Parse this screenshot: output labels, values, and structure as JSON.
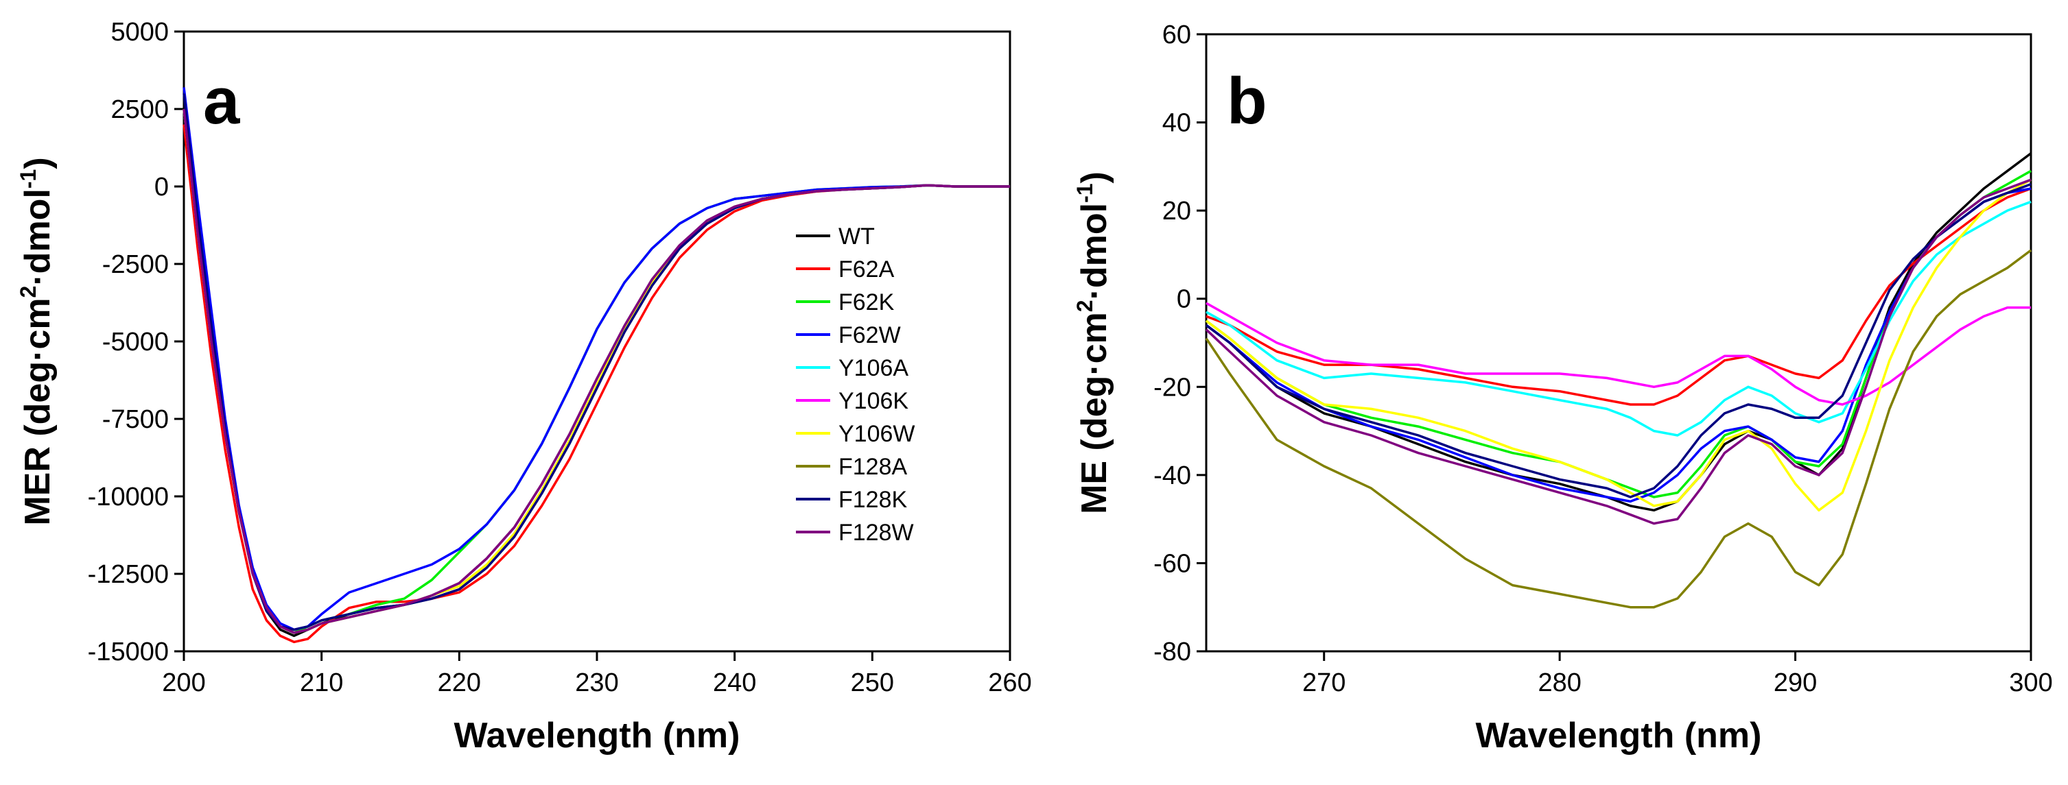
{
  "series_colors": {
    "WT": "#000000",
    "F62A": "#ff0000",
    "F62K": "#00ee00",
    "F62W": "#0000ff",
    "Y106A": "#00ffff",
    "Y106K": "#ff00ff",
    "Y106W": "#ffff00",
    "F128A": "#808000",
    "F128K": "#000080",
    "F128W": "#800080"
  },
  "chart_data": [
    {
      "type": "line",
      "panel_label": "a",
      "title": "",
      "xlabel": "Wavelength (nm)",
      "ylabel": "MER (deg·cm²·dmol⁻¹)",
      "ylabel_parts": [
        "MER (deg·cm",
        "2",
        "·dmol",
        "-1",
        ")"
      ],
      "xlim": [
        200,
        260
      ],
      "ylim": [
        -15000,
        5000
      ],
      "xticks": [
        200,
        210,
        220,
        230,
        240,
        250,
        260
      ],
      "yticks": [
        5000,
        2500,
        0,
        -2500,
        -5000,
        -7500,
        -10000,
        -12500,
        -15000
      ],
      "legend_position": "center-right",
      "legend": [
        "WT",
        "F62A",
        "F62K",
        "F62W",
        "Y106A",
        "Y106K",
        "Y106W",
        "F128A",
        "F128K",
        "F128W"
      ],
      "x": [
        200,
        201,
        202,
        203,
        204,
        205,
        206,
        207,
        208,
        209,
        210,
        212,
        214,
        216,
        218,
        220,
        222,
        224,
        226,
        228,
        230,
        232,
        234,
        236,
        238,
        240,
        242,
        244,
        246,
        248,
        250,
        252,
        254,
        256,
        258,
        260
      ],
      "series": [
        {
          "name": "WT",
          "values": [
            2500,
            -1500,
            -5000,
            -8000,
            -10500,
            -12500,
            -13700,
            -14300,
            -14500,
            -14300,
            -14100,
            -13800,
            -13600,
            -13500,
            -13300,
            -13000,
            -12300,
            -11300,
            -9900,
            -8300,
            -6500,
            -4700,
            -3200,
            -2000,
            -1200,
            -700,
            -400,
            -250,
            -150,
            -100,
            -60,
            -20,
            40,
            0,
            0,
            0
          ]
        },
        {
          "name": "F62A",
          "values": [
            2000,
            -2000,
            -5500,
            -8500,
            -11000,
            -13000,
            -14000,
            -14500,
            -14700,
            -14600,
            -14200,
            -13600,
            -13400,
            -13400,
            -13300,
            -13100,
            -12500,
            -11600,
            -10300,
            -8800,
            -7000,
            -5200,
            -3600,
            -2300,
            -1400,
            -800,
            -450,
            -280,
            -160,
            -100,
            -60,
            -20,
            40,
            0,
            0,
            0
          ]
        },
        {
          "name": "F62K",
          "values": [
            2500,
            -1500,
            -5000,
            -8000,
            -10500,
            -12500,
            -13600,
            -14200,
            -14400,
            -14200,
            -14000,
            -13800,
            -13500,
            -13300,
            -12700,
            -11800,
            -10900,
            -9800,
            -8300,
            -6500,
            -4600,
            -3100,
            -2000,
            -1200,
            -700,
            -400,
            -300,
            -200,
            -100,
            -60,
            -20,
            0,
            40,
            0,
            0,
            0
          ]
        },
        {
          "name": "F62W",
          "values": [
            3200,
            -500,
            -4000,
            -7500,
            -10300,
            -12300,
            -13500,
            -14100,
            -14300,
            -14200,
            -13800,
            -13100,
            -12800,
            -12500,
            -12200,
            -11700,
            -10900,
            -9800,
            -8300,
            -6500,
            -4600,
            -3100,
            -2000,
            -1200,
            -700,
            -400,
            -300,
            -200,
            -100,
            -60,
            -20,
            0,
            40,
            0,
            0,
            0
          ]
        },
        {
          "name": "Y106A",
          "values": [
            2500,
            -1500,
            -5000,
            -8000,
            -10500,
            -12500,
            -13600,
            -14200,
            -14400,
            -14300,
            -14100,
            -13900,
            -13700,
            -13500,
            -13200,
            -12800,
            -12000,
            -11000,
            -9600,
            -8000,
            -6200,
            -4500,
            -3000,
            -1900,
            -1100,
            -650,
            -400,
            -250,
            -150,
            -100,
            -60,
            -20,
            40,
            0,
            0,
            0
          ]
        },
        {
          "name": "Y106K",
          "values": [
            2500,
            -1500,
            -5000,
            -8000,
            -10500,
            -12500,
            -13600,
            -14200,
            -14400,
            -14300,
            -14100,
            -13900,
            -13700,
            -13500,
            -13200,
            -12800,
            -12000,
            -11000,
            -9600,
            -8000,
            -6200,
            -4500,
            -3000,
            -1900,
            -1100,
            -650,
            -400,
            -250,
            -150,
            -100,
            -60,
            -20,
            40,
            0,
            0,
            0
          ]
        },
        {
          "name": "Y106W",
          "values": [
            2500,
            -1500,
            -5000,
            -8000,
            -10500,
            -12500,
            -13600,
            -14200,
            -14400,
            -14300,
            -14100,
            -13900,
            -13700,
            -13500,
            -13200,
            -12900,
            -12200,
            -11200,
            -9800,
            -8200,
            -6400,
            -4600,
            -3100,
            -1950,
            -1150,
            -650,
            -400,
            -250,
            -150,
            -100,
            -60,
            -20,
            40,
            0,
            0,
            0
          ]
        },
        {
          "name": "F128A",
          "values": [
            2500,
            -1500,
            -5000,
            -8000,
            -10500,
            -12500,
            -13600,
            -14200,
            -14400,
            -14300,
            -14100,
            -13900,
            -13700,
            -13500,
            -13200,
            -12800,
            -12000,
            -11000,
            -9600,
            -8000,
            -6200,
            -4500,
            -3000,
            -1900,
            -1100,
            -650,
            -400,
            -250,
            -150,
            -100,
            -60,
            -20,
            40,
            0,
            0,
            0
          ]
        },
        {
          "name": "F128K",
          "values": [
            3000,
            -1000,
            -4500,
            -7800,
            -10500,
            -12500,
            -13700,
            -14200,
            -14300,
            -14200,
            -14000,
            -13800,
            -13600,
            -13500,
            -13300,
            -13000,
            -12300,
            -11300,
            -9900,
            -8300,
            -6500,
            -4700,
            -3200,
            -2000,
            -1200,
            -700,
            -400,
            -250,
            -150,
            -100,
            -60,
            -20,
            40,
            0,
            0,
            0
          ]
        },
        {
          "name": "F128W",
          "values": [
            2500,
            -1500,
            -5000,
            -8000,
            -10500,
            -12500,
            -13600,
            -14200,
            -14400,
            -14300,
            -14100,
            -13900,
            -13700,
            -13500,
            -13200,
            -12800,
            -12000,
            -11000,
            -9600,
            -8000,
            -6200,
            -4500,
            -3000,
            -1900,
            -1100,
            -650,
            -400,
            -250,
            -150,
            -100,
            -60,
            -20,
            40,
            0,
            0,
            0
          ]
        }
      ]
    },
    {
      "type": "line",
      "panel_label": "b",
      "title": "",
      "xlabel": "Wavelength (nm)",
      "ylabel": "ME (deg·cm²·dmol⁻¹)",
      "ylabel_parts": [
        "ME (deg·cm",
        "2",
        "·dmol",
        "-1",
        ")"
      ],
      "xlim": [
        265,
        300
      ],
      "ylim": [
        -80,
        60
      ],
      "xticks": [
        270,
        280,
        290,
        300
      ],
      "yticks": [
        60,
        40,
        20,
        0,
        -20,
        -40,
        -60,
        -80
      ],
      "x": [
        265,
        266,
        268,
        270,
        272,
        274,
        276,
        278,
        280,
        282,
        283,
        284,
        285,
        286,
        287,
        288,
        289,
        290,
        291,
        292,
        293,
        294,
        295,
        296,
        297,
        298,
        299,
        300
      ],
      "series": [
        {
          "name": "WT",
          "values": [
            -6,
            -10,
            -20,
            -26,
            -29,
            -33,
            -37,
            -40,
            -42,
            -45,
            -47,
            -48,
            -46,
            -40,
            -33,
            -30,
            -32,
            -37,
            -40,
            -34,
            -18,
            -2,
            8,
            15,
            20,
            25,
            29,
            33
          ]
        },
        {
          "name": "F62A",
          "values": [
            -4,
            -6,
            -12,
            -15,
            -15,
            -16,
            -18,
            -20,
            -21,
            -23,
            -24,
            -24,
            -22,
            -18,
            -14,
            -13,
            -15,
            -17,
            -18,
            -14,
            -5,
            3,
            8,
            12,
            16,
            20,
            23,
            25
          ]
        },
        {
          "name": "F62K",
          "values": [
            -5,
            -9,
            -18,
            -24,
            -27,
            -29,
            -32,
            -35,
            -37,
            -41,
            -43,
            -45,
            -44,
            -38,
            -31,
            -29,
            -32,
            -37,
            -38,
            -33,
            -18,
            -3,
            7,
            14,
            19,
            23,
            26,
            29
          ]
        },
        {
          "name": "F62W",
          "values": [
            -6,
            -10,
            -19,
            -25,
            -29,
            -32,
            -36,
            -40,
            -43,
            -45,
            -46,
            -44,
            -40,
            -34,
            -30,
            -29,
            -32,
            -36,
            -37,
            -30,
            -15,
            -3,
            7,
            14,
            18,
            22,
            24,
            25
          ]
        },
        {
          "name": "Y106A",
          "values": [
            -3,
            -6,
            -14,
            -18,
            -17,
            -18,
            -19,
            -21,
            -23,
            -25,
            -27,
            -30,
            -31,
            -28,
            -23,
            -20,
            -22,
            -26,
            -28,
            -26,
            -16,
            -5,
            4,
            10,
            14,
            17,
            20,
            22
          ]
        },
        {
          "name": "Y106K",
          "values": [
            -1,
            -4,
            -10,
            -14,
            -15,
            -15,
            -17,
            -17,
            -17,
            -18,
            -19,
            -20,
            -19,
            -16,
            -13,
            -13,
            -16,
            -20,
            -23,
            -24,
            -22,
            -19,
            -15,
            -11,
            -7,
            -4,
            -2,
            -2
          ]
        },
        {
          "name": "Y106W",
          "values": [
            -5,
            -9,
            -18,
            -24,
            -25,
            -27,
            -30,
            -34,
            -37,
            -41,
            -44,
            -47,
            -46,
            -40,
            -32,
            -30,
            -34,
            -42,
            -48,
            -44,
            -30,
            -14,
            -2,
            7,
            14,
            20,
            24,
            27
          ]
        },
        {
          "name": "F128A",
          "values": [
            -9,
            -17,
            -32,
            -38,
            -43,
            -51,
            -59,
            -65,
            -67,
            -69,
            -70,
            -70,
            -68,
            -62,
            -54,
            -51,
            -54,
            -62,
            -65,
            -58,
            -42,
            -25,
            -12,
            -4,
            1,
            4,
            7,
            11
          ]
        },
        {
          "name": "F128K",
          "values": [
            -6,
            -10,
            -20,
            -25,
            -28,
            -31,
            -35,
            -38,
            -41,
            -43,
            -45,
            -43,
            -38,
            -31,
            -26,
            -24,
            -25,
            -27,
            -27,
            -22,
            -10,
            2,
            9,
            14,
            18,
            22,
            24,
            26
          ]
        },
        {
          "name": "F128W",
          "values": [
            -7,
            -12,
            -22,
            -28,
            -31,
            -35,
            -38,
            -41,
            -44,
            -47,
            -49,
            -51,
            -50,
            -43,
            -35,
            -31,
            -33,
            -38,
            -40,
            -35,
            -20,
            -4,
            7,
            14,
            19,
            23,
            25,
            27
          ]
        }
      ]
    }
  ]
}
